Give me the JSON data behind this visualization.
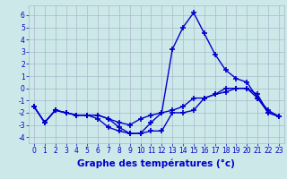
{
  "xlabel": "Graphe des températures (°c)",
  "hours": [
    0,
    1,
    2,
    3,
    4,
    5,
    6,
    7,
    8,
    9,
    10,
    11,
    12,
    13,
    14,
    15,
    16,
    17,
    18,
    19,
    20,
    21,
    22,
    23
  ],
  "line1": [
    -1.5,
    -2.8,
    -1.8,
    -2.0,
    -2.2,
    -2.2,
    -2.2,
    -2.5,
    -2.8,
    -3.0,
    -2.5,
    -2.2,
    -2.0,
    -1.8,
    -1.5,
    -0.8,
    -0.8,
    -0.5,
    -0.3,
    0.0,
    0.0,
    -0.8,
    -1.8,
    -2.3
  ],
  "line2": [
    -1.5,
    -2.8,
    -1.8,
    -2.0,
    -2.2,
    -2.2,
    -2.2,
    -2.5,
    -3.2,
    -3.7,
    -3.7,
    -2.8,
    -2.0,
    3.2,
    5.0,
    6.2,
    4.5,
    2.8,
    1.5,
    0.8,
    0.5,
    -0.8,
    -2.0,
    -2.3
  ],
  "line3": [
    -1.5,
    -2.8,
    -1.8,
    -2.0,
    -2.2,
    -2.2,
    -2.5,
    -3.2,
    -3.5,
    -3.7,
    -3.7,
    -3.5,
    -3.5,
    -2.0,
    -2.0,
    -1.8,
    -0.8,
    -0.5,
    0.0,
    0.0,
    0.0,
    -0.5,
    -2.0,
    -2.3
  ],
  "bg_color": "#cce8e8",
  "grid_color": "#aab8cc",
  "line_color": "#0000cc",
  "ylim": [
    -4.5,
    6.8
  ],
  "yticks": [
    -4,
    -3,
    -2,
    -1,
    0,
    1,
    2,
    3,
    4,
    5,
    6
  ],
  "xticks": [
    0,
    1,
    2,
    3,
    4,
    5,
    6,
    7,
    8,
    9,
    10,
    11,
    12,
    13,
    14,
    15,
    16,
    17,
    18,
    19,
    20,
    21,
    22,
    23
  ],
  "marker": "+",
  "markersize": 4,
  "linewidth": 1.0,
  "tick_fontsize": 5.5,
  "label_fontsize": 7.5
}
